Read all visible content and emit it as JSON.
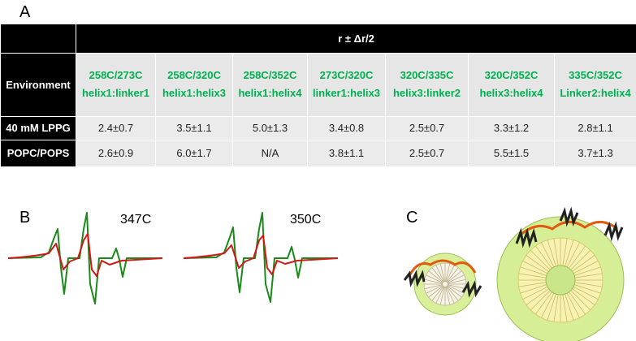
{
  "panel_a": {
    "label": "A",
    "super_header": "r ± Δr/2",
    "corner": "Environment",
    "columns": [
      [
        "258C/273C",
        "helix1:linker1"
      ],
      [
        "258C/320C",
        "helix1:helix3"
      ],
      [
        "258C/352C",
        "helix1:helix4"
      ],
      [
        "273C/320C",
        "linker1:helix3"
      ],
      [
        "320C/335C",
        "helix3:linker2"
      ],
      [
        "320C/352C",
        "helix3:helix4"
      ],
      [
        "335C/352C",
        "Linker2:helix4"
      ]
    ],
    "rows": [
      [
        "40 mM LPPG",
        "2.4±0.7",
        "3.5±1.1",
        "5.0±1.3",
        "3.4±0.8",
        "2.5±0.7",
        "3.3±1.2",
        "2.8±1.1"
      ],
      [
        "POPC/POPS",
        "2.6±0.9",
        "6.0±1.7",
        "N/A",
        "3.8±1.1",
        "2.5±0.7",
        "5.5±1.5",
        "3.7±1.3"
      ]
    ]
  },
  "panel_b": {
    "label": "B",
    "spectra": [
      "347C",
      "350C"
    ]
  },
  "panel_c": {
    "label": "C"
  }
}
